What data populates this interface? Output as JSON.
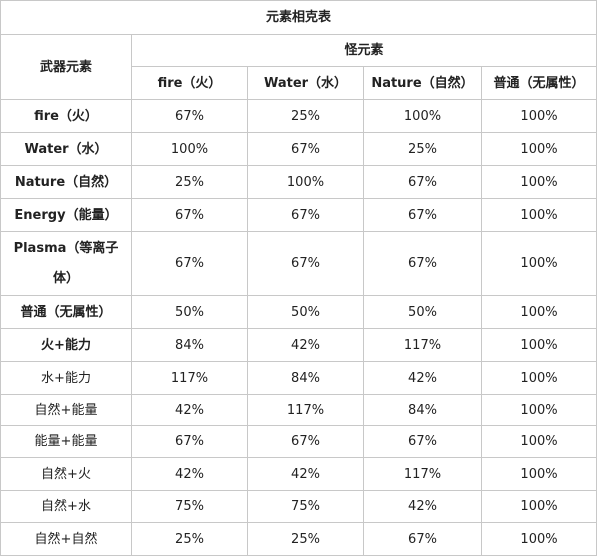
{
  "table": {
    "title": "元素相克表",
    "row_header_label": "武器元素",
    "group_header_label": "怪元素",
    "columns": [
      "fire（火）",
      "Water（水）",
      "Nature（自然）",
      "普通（无属性）"
    ],
    "rows": [
      {
        "label": "fire（火）",
        "bold": true,
        "values": [
          "67%",
          "25%",
          "100%",
          "100%"
        ]
      },
      {
        "label": "Water（水）",
        "bold": true,
        "values": [
          "100%",
          "67%",
          "25%",
          "100%"
        ]
      },
      {
        "label": "Nature（自然）",
        "bold": true,
        "values": [
          "25%",
          "100%",
          "67%",
          "100%"
        ]
      },
      {
        "label": "Energy（能量）",
        "bold": true,
        "values": [
          "67%",
          "67%",
          "67%",
          "100%"
        ]
      },
      {
        "label": "Plasma（等离子体）",
        "bold": true,
        "values": [
          "67%",
          "67%",
          "67%",
          "100%"
        ]
      },
      {
        "label": "普通（无属性）",
        "bold": true,
        "values": [
          "50%",
          "50%",
          "50%",
          "100%"
        ]
      },
      {
        "label": "火+能力",
        "bold": true,
        "values": [
          "84%",
          "42%",
          "117%",
          "100%"
        ]
      },
      {
        "label": "水+能力",
        "bold": false,
        "values": [
          "117%",
          "84%",
          "42%",
          "100%"
        ]
      },
      {
        "label": "自然+能量",
        "bold": false,
        "values": [
          "42%",
          "117%",
          "84%",
          "100%"
        ]
      },
      {
        "label": "能量+能量",
        "bold": false,
        "values": [
          "67%",
          "67%",
          "67%",
          "100%"
        ]
      },
      {
        "label": "自然+火",
        "bold": false,
        "values": [
          "42%",
          "42%",
          "117%",
          "100%"
        ]
      },
      {
        "label": "自然+水",
        "bold": false,
        "values": [
          "75%",
          "75%",
          "42%",
          "100%"
        ]
      },
      {
        "label": "自然+自然",
        "bold": false,
        "values": [
          "25%",
          "25%",
          "67%",
          "100%"
        ]
      }
    ]
  }
}
